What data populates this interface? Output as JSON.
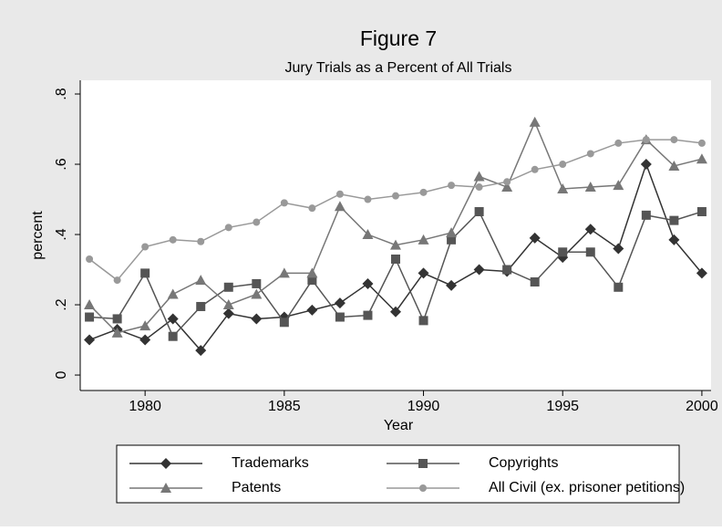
{
  "chart_data": {
    "type": "line",
    "title": "Figure 7",
    "subtitle": "Jury Trials as a Percent of All Trials",
    "x_label": "Year",
    "y_label": "percent",
    "x": [
      1978,
      1979,
      1980,
      1981,
      1982,
      1983,
      1984,
      1985,
      1986,
      1987,
      1988,
      1989,
      1990,
      1991,
      1992,
      1993,
      1994,
      1995,
      1996,
      1997,
      1998,
      1999,
      2000
    ],
    "series": [
      {
        "name": "Trademarks",
        "color": "#333333",
        "marker": "diamond",
        "values": [
          0.1,
          0.13,
          0.1,
          0.16,
          0.07,
          0.175,
          0.16,
          0.165,
          0.185,
          0.205,
          0.26,
          0.18,
          0.29,
          0.255,
          0.3,
          0.295,
          0.39,
          0.335,
          0.415,
          0.36,
          0.6,
          0.385,
          0.29
        ]
      },
      {
        "name": "Copyrights",
        "color": "#555555",
        "marker": "square",
        "values": [
          0.165,
          0.16,
          0.29,
          0.11,
          0.195,
          0.25,
          0.26,
          0.15,
          0.27,
          0.165,
          0.17,
          0.33,
          0.155,
          0.385,
          0.465,
          0.3,
          0.265,
          0.35,
          0.35,
          0.25,
          0.455,
          0.44,
          0.465
        ]
      },
      {
        "name": "Patents",
        "color": "#777777",
        "marker": "triangle",
        "values": [
          0.2,
          0.12,
          0.14,
          0.23,
          0.27,
          0.2,
          0.23,
          0.29,
          0.29,
          0.48,
          0.4,
          0.37,
          0.385,
          0.405,
          0.565,
          0.535,
          0.72,
          0.53,
          0.535,
          0.54,
          0.67,
          0.595,
          0.615
        ]
      },
      {
        "name": "All Civil (ex. prisoner petitions)",
        "color": "#999999",
        "marker": "circle",
        "values": [
          0.33,
          0.27,
          0.365,
          0.385,
          0.38,
          0.42,
          0.435,
          0.49,
          0.475,
          0.515,
          0.5,
          0.51,
          0.52,
          0.54,
          0.535,
          0.55,
          0.585,
          0.6,
          0.63,
          0.66,
          0.67,
          0.67,
          0.66
        ]
      }
    ],
    "xlim": [
      1977.67,
      2000.33
    ],
    "xticks": [
      1980,
      1985,
      1990,
      1995,
      2000
    ],
    "ylim": [
      -0.044,
      0.839
    ],
    "yticks": [
      0,
      {
        "value": 0.2,
        "label": ".2"
      },
      {
        "value": 0.4,
        "label": ".4"
      },
      {
        "value": 0.6,
        "label": ".6"
      },
      {
        "value": 0.8,
        "label": ".8"
      }
    ]
  }
}
